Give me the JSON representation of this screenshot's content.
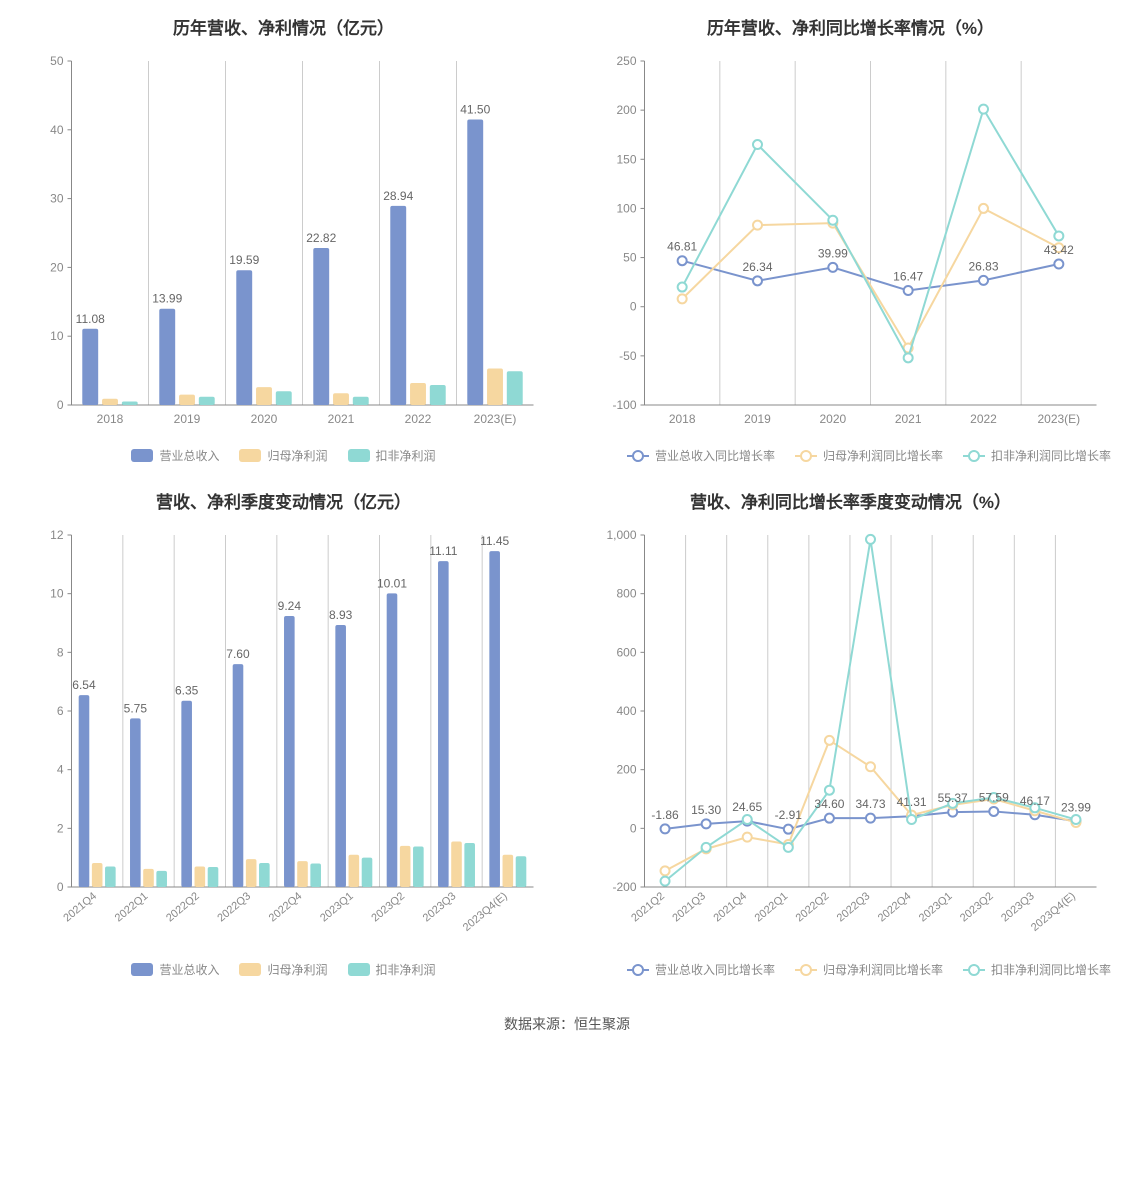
{
  "colors": {
    "series_a": "#7a94cd",
    "series_b": "#f6d7a0",
    "series_c": "#8fd9d4",
    "axis": "#888888",
    "grid": "#eeeeee",
    "split": "#cccccc",
    "label": "#666666",
    "tick": "#888888",
    "bg": "#ffffff"
  },
  "footer": "数据来源：恒生聚源",
  "chart1": {
    "title": "历年营收、净利情况（亿元）",
    "type": "bar",
    "categories": [
      "2018",
      "2019",
      "2020",
      "2021",
      "2022",
      "2023(E)"
    ],
    "series": [
      {
        "name": "营业总收入",
        "color_key": "series_a",
        "values": [
          11.08,
          13.99,
          19.59,
          22.82,
          28.94,
          41.5
        ]
      },
      {
        "name": "归母净利润",
        "color_key": "series_b",
        "values": [
          0.9,
          1.5,
          2.6,
          1.7,
          3.2,
          5.3
        ]
      },
      {
        "name": "扣非净利润",
        "color_key": "series_c",
        "values": [
          0.5,
          1.2,
          2.0,
          1.2,
          2.9,
          4.9
        ]
      }
    ],
    "labels_series_index": 0,
    "ylim": [
      0,
      50
    ],
    "ytick_step": 10,
    "bar_group_width": 0.72,
    "bar_gap": 0.05,
    "label_decimals": 2,
    "title_fontsize": 17,
    "tick_fontsize": 12
  },
  "chart2": {
    "title": "历年营收、净利同比增长率情况（%）",
    "type": "line",
    "categories": [
      "2018",
      "2019",
      "2020",
      "2021",
      "2022",
      "2023(E)"
    ],
    "series": [
      {
        "name": "营业总收入同比增长率",
        "color_key": "series_a",
        "values": [
          46.81,
          26.34,
          39.99,
          16.47,
          26.83,
          43.42
        ]
      },
      {
        "name": "归母净利润同比增长率",
        "color_key": "series_b",
        "values": [
          8,
          83,
          85,
          -42,
          100,
          60
        ]
      },
      {
        "name": "扣非净利润同比增长率",
        "color_key": "series_c",
        "values": [
          20,
          165,
          88,
          -52,
          201,
          72
        ]
      }
    ],
    "labels_series_index": 0,
    "ylim": [
      -100,
      250
    ],
    "ytick_step": 50,
    "marker_radius": 4.5,
    "line_width": 2,
    "label_decimals": 2,
    "title_fontsize": 17,
    "tick_fontsize": 12
  },
  "chart3": {
    "title": "营收、净利季度变动情况（亿元）",
    "type": "bar",
    "categories": [
      "2021Q4",
      "2022Q1",
      "2022Q2",
      "2022Q3",
      "2022Q4",
      "2023Q1",
      "2023Q2",
      "2023Q3",
      "2023Q4(E)"
    ],
    "series": [
      {
        "name": "营业总收入",
        "color_key": "series_a",
        "values": [
          6.54,
          5.75,
          6.35,
          7.6,
          9.24,
          8.93,
          10.01,
          11.11,
          11.45
        ]
      },
      {
        "name": "归母净利润",
        "color_key": "series_b",
        "values": [
          0.82,
          0.62,
          0.7,
          0.95,
          0.88,
          1.1,
          1.4,
          1.55,
          1.1
        ]
      },
      {
        "name": "扣非净利润",
        "color_key": "series_c",
        "values": [
          0.7,
          0.55,
          0.68,
          0.82,
          0.8,
          1.0,
          1.38,
          1.5,
          1.05
        ]
      }
    ],
    "labels_series_index": 0,
    "ylim": [
      0,
      12
    ],
    "ytick_step": 2,
    "bar_group_width": 0.72,
    "bar_gap": 0.05,
    "rotate_xticks": true,
    "label_decimals": 2,
    "title_fontsize": 17,
    "tick_fontsize": 12
  },
  "chart4": {
    "title": "营收、净利同比增长率季度变动情况（%）",
    "type": "line",
    "categories": [
      "2021Q2",
      "2021Q3",
      "2021Q4",
      "2022Q1",
      "2022Q2",
      "2022Q3",
      "2022Q4",
      "2023Q1",
      "2023Q2",
      "2023Q3",
      "2023Q4(E)"
    ],
    "series": [
      {
        "name": "营业总收入同比增长率",
        "color_key": "series_a",
        "values": [
          -1.86,
          15.3,
          24.65,
          -2.91,
          34.6,
          34.73,
          41.31,
          55.37,
          57.59,
          46.17,
          23.99
        ]
      },
      {
        "name": "归母净利润同比增长率",
        "color_key": "series_b",
        "values": [
          -145,
          -70,
          -30,
          -55,
          300,
          210,
          45,
          80,
          100,
          60,
          20
        ]
      },
      {
        "name": "扣非净利润同比增长率",
        "color_key": "series_c",
        "values": [
          -180,
          -65,
          30,
          -65,
          130,
          985,
          30,
          85,
          105,
          70,
          30
        ]
      }
    ],
    "labels_series_index": 0,
    "ylim": [
      -200,
      1000
    ],
    "ytick_step": 200,
    "marker_radius": 4.5,
    "line_width": 2,
    "rotate_xticks": true,
    "label_decimals": 2,
    "title_fontsize": 17,
    "tick_fontsize": 12
  }
}
